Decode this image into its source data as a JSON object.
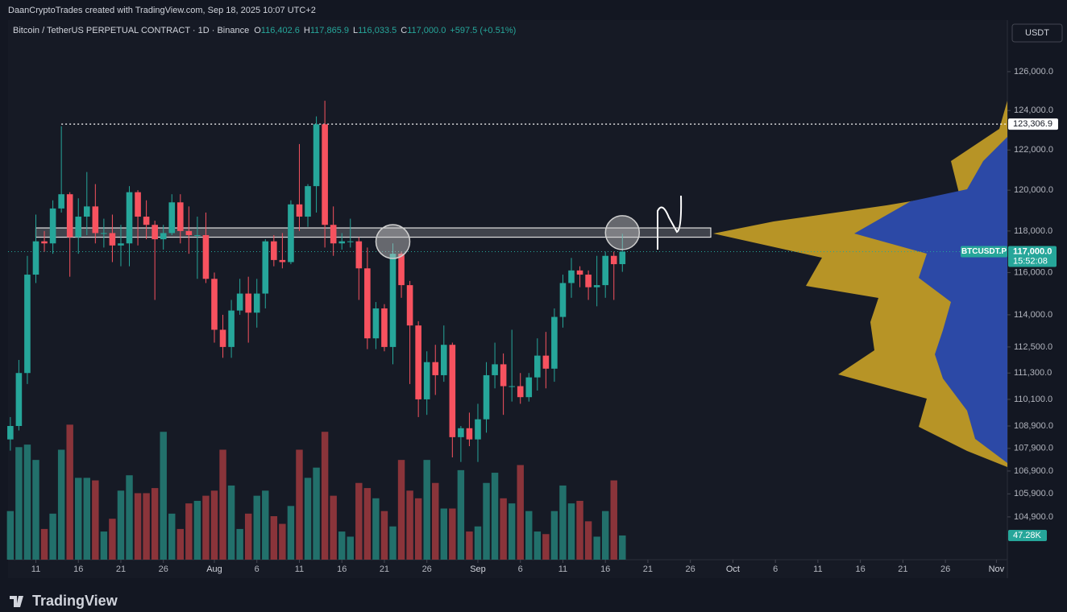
{
  "header": "DaanCryptoTrades created with TradingView.com, Sep 18, 2025 10:07 UTC+2",
  "brand": "TradingView",
  "currency": "USDT",
  "chart_data": {
    "type": "candlestick",
    "title": "Bitcoin / TetherUS PERPETUAL CONTRACT · 1D · Binance",
    "legend_ohlc": [
      {
        "key": "O",
        "label": "116,402.6"
      },
      {
        "key": "H",
        "label": "117,865.9"
      },
      {
        "key": "L",
        "label": "116,033.5"
      },
      {
        "key": "C",
        "label": "117,000.0"
      }
    ],
    "change": "+597.5 (+0.51%)",
    "log_scale": true,
    "grid": false,
    "up_color": "#26a69a",
    "down_color": "#f7525f",
    "volume_up_color": "#22706b",
    "volume_down_color": "#8a343a",
    "x": [
      0,
      1,
      2,
      3,
      4,
      5,
      6,
      7,
      8,
      9,
      10,
      11,
      12,
      13,
      14,
      15,
      16,
      17,
      18,
      19,
      20,
      21,
      22,
      23,
      24,
      25,
      26,
      27,
      28,
      29,
      30,
      31,
      32,
      33,
      34,
      35,
      36,
      37,
      38,
      39,
      40,
      41,
      42,
      43,
      44,
      45,
      46,
      47,
      48,
      49,
      50,
      51,
      52,
      53,
      54,
      55,
      56,
      57,
      58,
      59,
      60,
      61,
      62,
      63,
      64,
      65,
      66,
      67,
      68,
      69,
      70,
      71,
      72
    ],
    "open": [
      108300,
      108900,
      111300,
      115900,
      117500,
      117400,
      119100,
      119800,
      117700,
      118700,
      119200,
      117900,
      117900,
      117300,
      117400,
      119900,
      118700,
      118300,
      117600,
      117900,
      119400,
      118000,
      117800,
      117800,
      115700,
      113300,
      112500,
      114200,
      115000,
      114100,
      115000,
      117500,
      116600,
      116500,
      119300,
      118700,
      120200,
      123300,
      118300,
      117400,
      117500,
      117500,
      116200,
      112900,
      114300,
      112500,
      116900,
      115400,
      113500,
      110100,
      111800,
      111200,
      112600,
      108400,
      108800,
      108300,
      109200,
      111200,
      111700,
      110700,
      110700,
      110200,
      111100,
      112100,
      111500,
      113900,
      115500,
      116100,
      115900,
      115300,
      115400,
      116800,
      116402.6
    ],
    "high": [
      109300,
      111900,
      116800,
      118800,
      118000,
      119500,
      123200,
      119900,
      119600,
      120900,
      120300,
      118600,
      118800,
      118300,
      120200,
      120000,
      119500,
      118500,
      118300,
      119800,
      119800,
      119200,
      118700,
      118900,
      116000,
      114000,
      114700,
      115700,
      115800,
      115700,
      117600,
      117800,
      117900,
      119500,
      122300,
      120300,
      123700,
      124500,
      119200,
      117900,
      118600,
      117700,
      117200,
      114600,
      114500,
      117400,
      117000,
      115600,
      113700,
      112300,
      112600,
      113500,
      112700,
      108900,
      109500,
      109900,
      111800,
      112700,
      112200,
      113300,
      111300,
      111300,
      112900,
      113200,
      114300,
      115900,
      116700,
      116300,
      116100,
      116800,
      117000,
      117000,
      117865.9
    ],
    "low": [
      107800,
      108700,
      110800,
      115500,
      117000,
      116900,
      118900,
      115800,
      116900,
      117800,
      117400,
      117200,
      116500,
      116300,
      116300,
      117300,
      117600,
      114700,
      117100,
      117800,
      117400,
      116900,
      115700,
      115500,
      112700,
      112000,
      112000,
      114000,
      112700,
      113400,
      114300,
      116300,
      116200,
      116400,
      118000,
      118200,
      118900,
      117200,
      116800,
      117100,
      117200,
      114700,
      112400,
      112400,
      112300,
      111700,
      114800,
      110800,
      109300,
      109400,
      110300,
      110900,
      107500,
      107300,
      108000,
      107300,
      108600,
      110600,
      109400,
      110000,
      109900,
      110000,
      110500,
      110600,
      110900,
      113400,
      114800,
      115300,
      114700,
      114400,
      114800,
      114700,
      116033.5
    ],
    "close": [
      108900,
      111300,
      115900,
      117500,
      117400,
      119100,
      119800,
      117700,
      118700,
      119200,
      117900,
      117900,
      117300,
      117400,
      119900,
      118700,
      118300,
      117600,
      117900,
      119400,
      118000,
      117800,
      117800,
      115700,
      113300,
      112500,
      114200,
      115000,
      114100,
      115000,
      117500,
      116600,
      116500,
      119300,
      118700,
      120200,
      123300,
      118300,
      117400,
      117500,
      117500,
      116200,
      112900,
      114300,
      112500,
      116900,
      115400,
      113500,
      110100,
      111800,
      111200,
      112600,
      108400,
      108800,
      108300,
      109200,
      111200,
      111700,
      110700,
      110700,
      110200,
      111100,
      112100,
      111500,
      113900,
      115500,
      116100,
      115900,
      115300,
      115400,
      116800,
      116400,
      117000
    ],
    "volume": [
      95,
      220,
      225,
      195,
      60,
      90,
      215,
      264,
      160,
      160,
      155,
      55,
      80,
      135,
      165,
      130,
      130,
      140,
      250,
      90,
      60,
      110,
      115,
      125,
      135,
      215,
      145,
      60,
      90,
      125,
      135,
      85,
      70,
      105,
      215,
      160,
      180,
      250,
      125,
      55,
      45,
      150,
      140,
      120,
      95,
      65,
      195,
      135,
      120,
      195,
      150,
      100,
      100,
      175,
      55,
      65,
      150,
      170,
      120,
      110,
      185,
      95,
      55,
      50,
      95,
      145,
      110,
      115,
      75,
      45,
      95,
      155,
      47.28
    ],
    "volume_value_label": "47.28K",
    "vlim": [
      0,
      1055
    ],
    "xlim": [
      -0.27,
      117.29
    ],
    "xticks": [
      {
        "value": 3,
        "label": "11"
      },
      {
        "value": 8,
        "label": "16"
      },
      {
        "value": 13,
        "label": "21"
      },
      {
        "value": 18,
        "label": "26"
      },
      {
        "value": 24,
        "label": "Aug"
      },
      {
        "value": 29,
        "label": "6"
      },
      {
        "value": 34,
        "label": "11"
      },
      {
        "value": 39,
        "label": "16"
      },
      {
        "value": 44,
        "label": "21"
      },
      {
        "value": 49,
        "label": "26"
      },
      {
        "value": 55,
        "label": "Sep"
      },
      {
        "value": 60,
        "label": "6"
      },
      {
        "value": 65,
        "label": "11"
      },
      {
        "value": 70,
        "label": "16"
      },
      {
        "value": 75,
        "label": "21"
      },
      {
        "value": 80,
        "label": "26"
      },
      {
        "value": 85,
        "label": "Oct"
      },
      {
        "value": 90,
        "label": "6"
      },
      {
        "value": 95,
        "label": "11"
      },
      {
        "value": 100,
        "label": "16"
      },
      {
        "value": 105,
        "label": "21"
      },
      {
        "value": 110,
        "label": "26"
      },
      {
        "value": 116,
        "label": "Nov"
      }
    ],
    "ylim": [
      103070,
      128700
    ],
    "yticks": [
      {
        "value": 126000,
        "label": "126,000.0"
      },
      {
        "value": 124000,
        "label": "124,000.0"
      },
      {
        "value": 122000,
        "label": "122,000.0"
      },
      {
        "value": 120000,
        "label": "120,000.0"
      },
      {
        "value": 118000,
        "label": "118,000.0"
      },
      {
        "value": 116000,
        "label": "116,000.0"
      },
      {
        "value": 114000,
        "label": "114,000.0"
      },
      {
        "value": 112500,
        "label": "112,500.0"
      },
      {
        "value": 111300,
        "label": "111,300.0"
      },
      {
        "value": 110100,
        "label": "110,100.0"
      },
      {
        "value": 108900,
        "label": "108,900.0"
      },
      {
        "value": 107900,
        "label": "107,900.0"
      },
      {
        "value": 106900,
        "label": "106,900.0"
      },
      {
        "value": 105900,
        "label": "105,900.0"
      },
      {
        "value": 104900,
        "label": "104,900.0"
      }
    ],
    "ath_line": {
      "x": 6,
      "value": 123306.9,
      "label": "123,306.9"
    },
    "last_price": {
      "value": 117000,
      "label": "117,000.0",
      "symbol": "BTCUSDT.P",
      "countdown": "15:52:08"
    },
    "zone": {
      "x": [
        3,
        82.4
      ],
      "low": 117700,
      "high": 118150
    },
    "circles": [
      {
        "x": 45,
        "y": 117490
      },
      {
        "x": 72,
        "y": 117920
      }
    ]
  }
}
